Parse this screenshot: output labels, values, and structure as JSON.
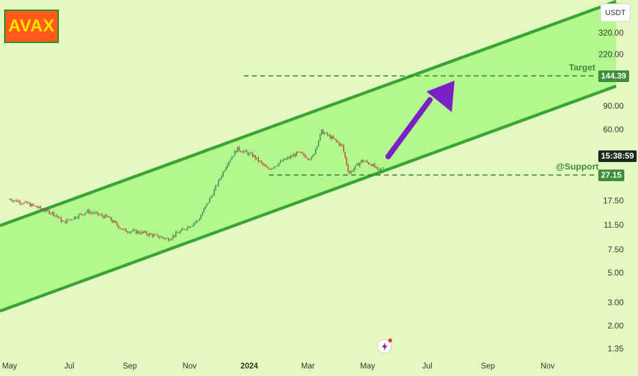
{
  "title_badge": "AVAX",
  "currency": "USDT",
  "target": {
    "label": "Target",
    "price_label": "144.39",
    "price": 144.39
  },
  "support": {
    "label": "@Support",
    "price_label": "27.15",
    "price": 27.15
  },
  "countdown": "15:38:59",
  "colors": {
    "channel_fill": "#b3f78f",
    "channel_line": "#39a535",
    "arrow": "#7a20c9",
    "background": "#e4f9c2",
    "badge_bg": "#ff5a1a",
    "badge_text": "#ffe200"
  },
  "chart_data": {
    "type": "candlestick",
    "symbol": "AVAX",
    "quote": "USDT",
    "y_scale": "log",
    "ylim": [
      1.3,
      420
    ],
    "y_ticks": [
      "320.00",
      "220.00",
      "90.00",
      "60.00",
      "17.50",
      "11.50",
      "7.50",
      "5.00",
      "3.00",
      "2.00",
      "1.35"
    ],
    "x_ticks": [
      "May",
      "Jul",
      "Sep",
      "Nov",
      "2024",
      "Mar",
      "May",
      "Jul",
      "Sep",
      "Nov"
    ],
    "price_path": [
      {
        "date": "2023-05-01",
        "close": 18.0
      },
      {
        "date": "2023-05-20",
        "close": 16.5
      },
      {
        "date": "2023-06-15",
        "close": 14.0
      },
      {
        "date": "2023-06-25",
        "close": 12.0
      },
      {
        "date": "2023-07-10",
        "close": 13.5
      },
      {
        "date": "2023-07-20",
        "close": 14.5
      },
      {
        "date": "2023-08-10",
        "close": 13.0
      },
      {
        "date": "2023-08-25",
        "close": 10.5
      },
      {
        "date": "2023-09-15",
        "close": 10.0
      },
      {
        "date": "2023-10-10",
        "close": 9.0
      },
      {
        "date": "2023-10-25",
        "close": 10.5
      },
      {
        "date": "2023-11-10",
        "close": 12.5
      },
      {
        "date": "2023-11-25",
        "close": 20.0
      },
      {
        "date": "2023-12-10",
        "close": 34.0
      },
      {
        "date": "2023-12-20",
        "close": 43.0
      },
      {
        "date": "2024-01-05",
        "close": 38.0
      },
      {
        "date": "2024-01-20",
        "close": 30.0
      },
      {
        "date": "2024-02-05",
        "close": 35.0
      },
      {
        "date": "2024-02-20",
        "close": 40.0
      },
      {
        "date": "2024-03-05",
        "close": 36.0
      },
      {
        "date": "2024-03-15",
        "close": 58.0
      },
      {
        "date": "2024-03-25",
        "close": 52.0
      },
      {
        "date": "2024-04-05",
        "close": 45.0
      },
      {
        "date": "2024-04-12",
        "close": 28.0
      },
      {
        "date": "2024-04-25",
        "close": 35.0
      },
      {
        "date": "2024-05-05",
        "close": 33.0
      },
      {
        "date": "2024-05-12",
        "close": 29.0
      },
      {
        "date": "2024-05-18",
        "close": 32.0
      }
    ]
  }
}
